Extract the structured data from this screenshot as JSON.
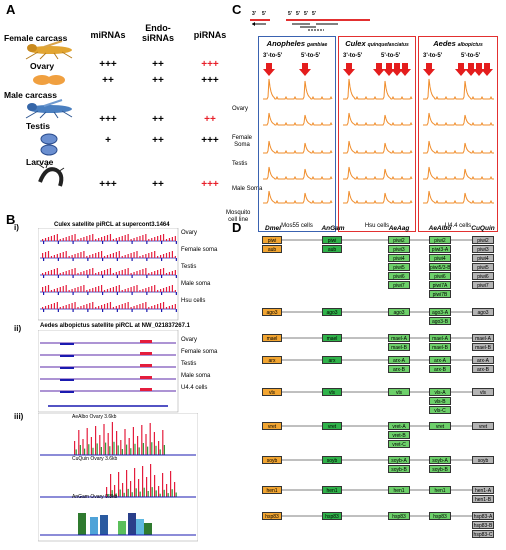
{
  "panelA": {
    "label": "A",
    "headers": {
      "mirna": "miRNAs",
      "endo": "Endo-\nsiRNAs",
      "pirna": "piRNAs"
    },
    "rows": [
      {
        "name": "Female carcass",
        "mirna": "+++",
        "endo": "++",
        "pirna": "+++",
        "pirna_red": true
      },
      {
        "name": "Ovary",
        "mirna": "++",
        "endo": "++",
        "pirna": "+++",
        "pirna_red": false
      },
      {
        "name": "Male carcass",
        "mirna": "+++",
        "endo": "++",
        "pirna": "++",
        "pirna_red": true
      },
      {
        "name": "Testis",
        "mirna": "+",
        "endo": "++",
        "pirna": "+++",
        "pirna_red": false
      },
      {
        "name": "Larvae",
        "mirna": "+++",
        "endo": "++",
        "pirna": "+++",
        "pirna_red": true
      }
    ]
  },
  "panelB": {
    "label": "B",
    "i": {
      "roman": "i)",
      "title": "Culex satellite piRCL at supercont3.1464",
      "tracks": [
        "Ovary",
        "Female soma",
        "Testis",
        "Male soma",
        "Hsu cells"
      ]
    },
    "ii": {
      "roman": "ii)",
      "title": "Aedes albopictus satellite piRCL at NW_021837267.1",
      "tracks": [
        "Ovary",
        "Female soma",
        "Testis",
        "Male soma",
        "U4.4 cells"
      ]
    },
    "iii": {
      "roman": "iii)",
      "tracks": [
        "AeAlbo Ovary  3.6kb",
        "CuQuin Ovary  3.6kb",
        "AnGam Ovary  0.8kb"
      ]
    }
  },
  "panelC": {
    "label": "C",
    "rows": [
      "Ovary",
      "Female\nSoma",
      "Testis",
      "Male Soma",
      "Mosquito\ncell line"
    ],
    "species": [
      {
        "genus": "Anopheles",
        "sp": "gambiae",
        "cells": "Mos55 cells",
        "border": "#3a62b0"
      },
      {
        "genus": "Culex",
        "sp": "quinquefasciatus",
        "cells": "Hsu cells",
        "border": "#e23030"
      },
      {
        "genus": "Aedes",
        "sp": "albopictus",
        "cells": "U4.4 cells",
        "border": "#e23030"
      }
    ],
    "p3": "3'-to-5'",
    "p5": "5'-to-5'",
    "scheme_labels": [
      "3'",
      "5'",
      "5'",
      "5'",
      "5'",
      "5'"
    ]
  },
  "panelD": {
    "label": "D",
    "headers": [
      "Dmel",
      "AnGam",
      "AeAag",
      "AeAlbo",
      "CuQuin"
    ],
    "groups": [
      {
        "dmel": [
          "piwi",
          "aub"
        ],
        "angam": [
          "piwi",
          "aub"
        ],
        "aeaag": [
          "piwi2",
          "piwi3",
          "piwi4",
          "piwi5",
          "piwi6",
          "piwi7"
        ],
        "aealbo": [
          "piwi2",
          "piwi3-A",
          "piwi4",
          "piwi5/3-B",
          "piwi6",
          "piwi7A",
          "piwi7B"
        ],
        "cuquin": [
          "piwi2",
          "piwi3",
          "piwi4",
          "piwi5",
          "piwi6",
          "piwi7"
        ]
      },
      {
        "dmel": [
          "ago3"
        ],
        "angam": [
          "ago3"
        ],
        "aeaag": [
          "ago3"
        ],
        "aealbo": [
          "ago3-A",
          "ago3-B"
        ],
        "cuquin": [
          "ago3"
        ]
      },
      {
        "dmel": [
          "mael"
        ],
        "angam": [
          "mael"
        ],
        "aeaag": [
          "mael-A",
          "mael-B"
        ],
        "aealbo": [
          "mael-A",
          "mael-B"
        ],
        "cuquin": [
          "mael-A",
          "mael-B"
        ]
      },
      {
        "dmel": [
          "arx"
        ],
        "angam": [
          "arx"
        ],
        "aeaag": [
          "arx-A",
          "arx-B"
        ],
        "aealbo": [
          "arx-A",
          "arx-B"
        ],
        "cuquin": [
          "arx-A",
          "arx-B"
        ]
      },
      {
        "dmel": [
          "vls"
        ],
        "angam": [
          "vls"
        ],
        "aeaag": [
          "vls"
        ],
        "aealbo": [
          "vls-A",
          "vls-B",
          "vls-C"
        ],
        "cuquin": [
          "vls"
        ]
      },
      {
        "dmel": [
          "vret"
        ],
        "angam": [
          "vret"
        ],
        "aeaag": [
          "vret-A",
          "vret-B",
          "vret-C"
        ],
        "aealbo": [
          "vret"
        ],
        "cuquin": [
          "vret"
        ]
      },
      {
        "dmel": [
          "soyb"
        ],
        "angam": [
          "soyb"
        ],
        "aeaag": [
          "soyb-A",
          "soyb-B"
        ],
        "aealbo": [
          "soyb-A",
          "soyb-B"
        ],
        "cuquin": [
          "soyb"
        ]
      },
      {
        "dmel": [
          "hen1"
        ],
        "angam": [
          "hen1"
        ],
        "aeaag": [
          "hen1"
        ],
        "aealbo": [
          "hen1"
        ],
        "cuquin": [
          "hen1-A",
          "hen1-B"
        ]
      },
      {
        "dmel": [
          "hsp83"
        ],
        "angam": [
          "hsp83"
        ],
        "aeaag": [
          "hsp83"
        ],
        "aealbo": [
          "hsp83"
        ],
        "cuquin": [
          "hsp83-A",
          "hsp83-B",
          "hsp83-C"
        ]
      }
    ]
  }
}
